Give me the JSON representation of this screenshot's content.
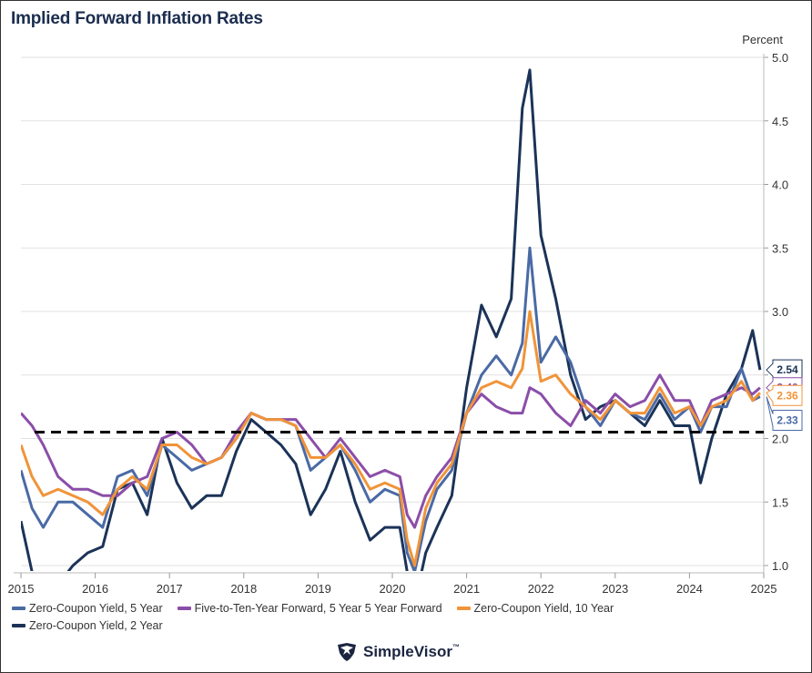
{
  "title": "Implied Forward Inflation Rates",
  "brand": {
    "name": "SimpleVisor",
    "tm": "™",
    "logo_icon": "eagle-shield-icon"
  },
  "colors": {
    "zc5": "#4a6aa5",
    "fwd": "#8b4ea8",
    "zc10": "#f0943a",
    "zc2": "#1b3358",
    "reference_line": "#000000",
    "grid": "#e2e2e2",
    "axis_text": "#333333"
  },
  "chart_data": {
    "type": "line",
    "title": "Implied Forward Inflation Rates",
    "ylabel": "Percent",
    "ylim": [
      1.0,
      5.0
    ],
    "yticks": [
      "1.0",
      "1.5",
      "2.0",
      "2.5",
      "3.0",
      "3.5",
      "4.0",
      "4.5",
      "5.0"
    ],
    "y_axis_side": "right",
    "xticks": [
      "2015",
      "2016",
      "2017",
      "2018",
      "2019",
      "2020",
      "2021",
      "2022",
      "2023",
      "2024",
      "2025"
    ],
    "xlim": [
      2015.0,
      2025.0
    ],
    "grid": "horizontal",
    "legend_position": "bottom",
    "reference_line": {
      "y": 2.05,
      "style": "dashed"
    },
    "series": [
      {
        "name": "Zero-Coupon Yield, 5 Year",
        "color_key": "zc5",
        "end_label": "2.33",
        "x": [
          2015.0,
          2015.15,
          2015.3,
          2015.5,
          2015.7,
          2015.9,
          2016.1,
          2016.3,
          2016.5,
          2016.7,
          2016.9,
          2017.1,
          2017.3,
          2017.5,
          2017.7,
          2017.9,
          2018.1,
          2018.3,
          2018.5,
          2018.7,
          2018.9,
          2019.1,
          2019.3,
          2019.5,
          2019.7,
          2019.9,
          2020.1,
          2020.2,
          2020.3,
          2020.45,
          2020.6,
          2020.8,
          2021.0,
          2021.2,
          2021.4,
          2021.6,
          2021.75,
          2021.85,
          2022.0,
          2022.2,
          2022.4,
          2022.6,
          2022.8,
          2023.0,
          2023.2,
          2023.4,
          2023.6,
          2023.8,
          2024.0,
          2024.15,
          2024.3,
          2024.5,
          2024.7,
          2024.85,
          2024.95
        ],
        "y": [
          1.75,
          1.45,
          1.3,
          1.5,
          1.5,
          1.4,
          1.3,
          1.7,
          1.75,
          1.55,
          1.95,
          1.85,
          1.75,
          1.8,
          1.85,
          2.0,
          2.2,
          2.15,
          2.15,
          2.1,
          1.75,
          1.85,
          1.95,
          1.75,
          1.5,
          1.6,
          1.55,
          1.1,
          0.95,
          1.35,
          1.6,
          1.75,
          2.2,
          2.5,
          2.65,
          2.5,
          2.75,
          3.5,
          2.6,
          2.8,
          2.6,
          2.25,
          2.1,
          2.3,
          2.2,
          2.15,
          2.35,
          2.15,
          2.25,
          2.05,
          2.25,
          2.25,
          2.55,
          2.3,
          2.33
        ]
      },
      {
        "name": "Five-to-Ten-Year Forward, 5 Year 5 Year Forward",
        "color_key": "fwd",
        "end_label": "2.40",
        "x": [
          2015.0,
          2015.15,
          2015.3,
          2015.5,
          2015.7,
          2015.9,
          2016.1,
          2016.3,
          2016.5,
          2016.7,
          2016.9,
          2017.1,
          2017.3,
          2017.5,
          2017.7,
          2017.9,
          2018.1,
          2018.3,
          2018.5,
          2018.7,
          2018.9,
          2019.1,
          2019.3,
          2019.5,
          2019.7,
          2019.9,
          2020.1,
          2020.2,
          2020.3,
          2020.45,
          2020.6,
          2020.8,
          2021.0,
          2021.2,
          2021.4,
          2021.6,
          2021.75,
          2021.85,
          2022.0,
          2022.2,
          2022.4,
          2022.6,
          2022.8,
          2023.0,
          2023.2,
          2023.4,
          2023.6,
          2023.8,
          2024.0,
          2024.15,
          2024.3,
          2024.5,
          2024.7,
          2024.85,
          2024.95
        ],
        "y": [
          2.2,
          2.1,
          1.95,
          1.7,
          1.6,
          1.6,
          1.55,
          1.55,
          1.65,
          1.7,
          2.0,
          2.05,
          1.95,
          1.8,
          1.85,
          2.05,
          2.2,
          2.15,
          2.15,
          2.15,
          2.0,
          1.85,
          2.0,
          1.85,
          1.7,
          1.75,
          1.7,
          1.4,
          1.3,
          1.55,
          1.7,
          1.85,
          2.2,
          2.35,
          2.25,
          2.2,
          2.2,
          2.4,
          2.35,
          2.2,
          2.1,
          2.3,
          2.2,
          2.35,
          2.25,
          2.3,
          2.5,
          2.3,
          2.3,
          2.1,
          2.3,
          2.35,
          2.4,
          2.35,
          2.4
        ]
      },
      {
        "name": "Zero-Coupon Yield, 10 Year",
        "color_key": "zc10",
        "end_label": "2.36",
        "x": [
          2015.0,
          2015.15,
          2015.3,
          2015.5,
          2015.7,
          2015.9,
          2016.1,
          2016.3,
          2016.5,
          2016.7,
          2016.9,
          2017.1,
          2017.3,
          2017.5,
          2017.7,
          2017.9,
          2018.1,
          2018.3,
          2018.5,
          2018.7,
          2018.9,
          2019.1,
          2019.3,
          2019.5,
          2019.7,
          2019.9,
          2020.1,
          2020.2,
          2020.3,
          2020.45,
          2020.6,
          2020.8,
          2021.0,
          2021.2,
          2021.4,
          2021.6,
          2021.75,
          2021.85,
          2022.0,
          2022.2,
          2022.4,
          2022.6,
          2022.8,
          2023.0,
          2023.2,
          2023.4,
          2023.6,
          2023.8,
          2024.0,
          2024.15,
          2024.3,
          2024.5,
          2024.7,
          2024.85,
          2024.95
        ],
        "y": [
          1.95,
          1.7,
          1.55,
          1.6,
          1.55,
          1.5,
          1.4,
          1.6,
          1.7,
          1.6,
          1.95,
          1.95,
          1.85,
          1.8,
          1.85,
          2.0,
          2.2,
          2.15,
          2.15,
          2.1,
          1.85,
          1.85,
          1.95,
          1.8,
          1.6,
          1.65,
          1.6,
          1.2,
          1.0,
          1.45,
          1.65,
          1.8,
          2.2,
          2.4,
          2.45,
          2.4,
          2.55,
          3.0,
          2.45,
          2.5,
          2.35,
          2.25,
          2.15,
          2.3,
          2.2,
          2.2,
          2.4,
          2.2,
          2.25,
          2.1,
          2.25,
          2.3,
          2.45,
          2.3,
          2.36
        ]
      },
      {
        "name": "Zero-Coupon Yield, 2 Year",
        "color_key": "zc2",
        "end_label": "2.54",
        "x": [
          2015.0,
          2015.15,
          2015.3,
          2015.5,
          2015.7,
          2015.9,
          2016.1,
          2016.3,
          2016.5,
          2016.7,
          2016.9,
          2017.1,
          2017.3,
          2017.5,
          2017.7,
          2017.9,
          2018.1,
          2018.3,
          2018.5,
          2018.7,
          2018.9,
          2019.1,
          2019.3,
          2019.5,
          2019.7,
          2019.9,
          2020.1,
          2020.2,
          2020.3,
          2020.45,
          2020.6,
          2020.8,
          2021.0,
          2021.2,
          2021.4,
          2021.6,
          2021.75,
          2021.85,
          2022.0,
          2022.2,
          2022.4,
          2022.6,
          2022.8,
          2023.0,
          2023.2,
          2023.4,
          2023.6,
          2023.8,
          2024.0,
          2024.15,
          2024.3,
          2024.5,
          2024.7,
          2024.85,
          2024.95
        ],
        "y": [
          1.35,
          0.95,
          0.8,
          0.85,
          1.0,
          1.1,
          1.15,
          1.6,
          1.65,
          1.4,
          2.0,
          1.65,
          1.45,
          1.55,
          1.55,
          1.9,
          2.15,
          2.05,
          1.95,
          1.8,
          1.4,
          1.6,
          1.9,
          1.5,
          1.2,
          1.3,
          1.3,
          0.95,
          0.7,
          1.1,
          1.3,
          1.55,
          2.4,
          3.05,
          2.8,
          3.1,
          4.6,
          4.9,
          3.6,
          3.1,
          2.5,
          2.15,
          2.25,
          2.3,
          2.2,
          2.1,
          2.3,
          2.1,
          2.1,
          1.65,
          2.0,
          2.35,
          2.55,
          2.85,
          2.54
        ]
      }
    ]
  }
}
